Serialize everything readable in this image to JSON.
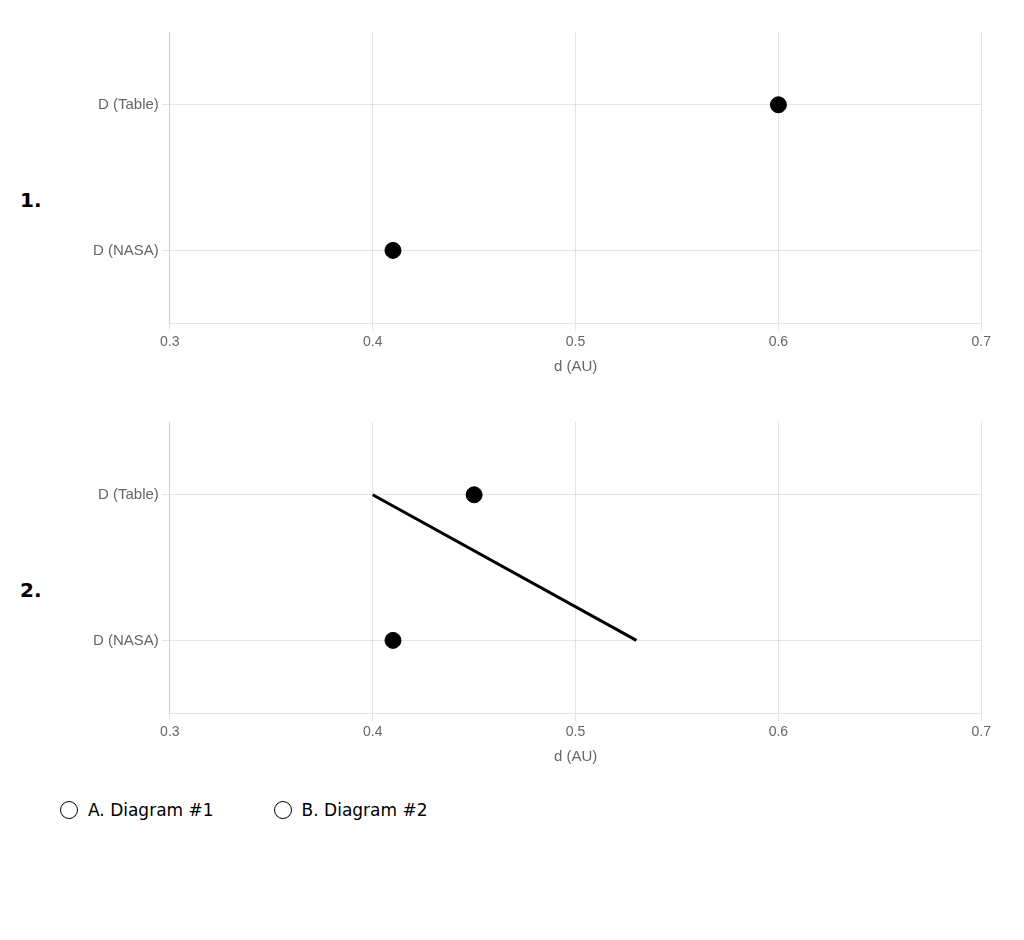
{
  "chart_data": [
    {
      "type": "scatter",
      "title": "1.",
      "categories": [
        "D (Table)",
        "D (NASA)"
      ],
      "values": [
        0.6,
        0.41
      ],
      "error_bars": [
        null,
        null
      ],
      "xlim": [
        0.3,
        0.7
      ],
      "xticks": [
        0.3,
        0.4,
        0.5,
        0.6,
        0.7
      ],
      "xlabel": "d (AU)",
      "color": "#000000",
      "grid": true
    },
    {
      "type": "scatter",
      "title": "2.",
      "categories": [
        "D (Table)",
        "D (NASA)"
      ],
      "values": [
        0.45,
        0.41
      ],
      "error_bars": [
        [
          0.4,
          0.53
        ],
        null
      ],
      "xlim": [
        0.3,
        0.7
      ],
      "xticks": [
        0.3,
        0.4,
        0.5,
        0.6,
        0.7
      ],
      "xlabel": "d (AU)",
      "color": "#000000",
      "grid": true,
      "annotations": [
        "A. Diagram #1",
        "B. Diagram #2"
      ]
    }
  ]
}
